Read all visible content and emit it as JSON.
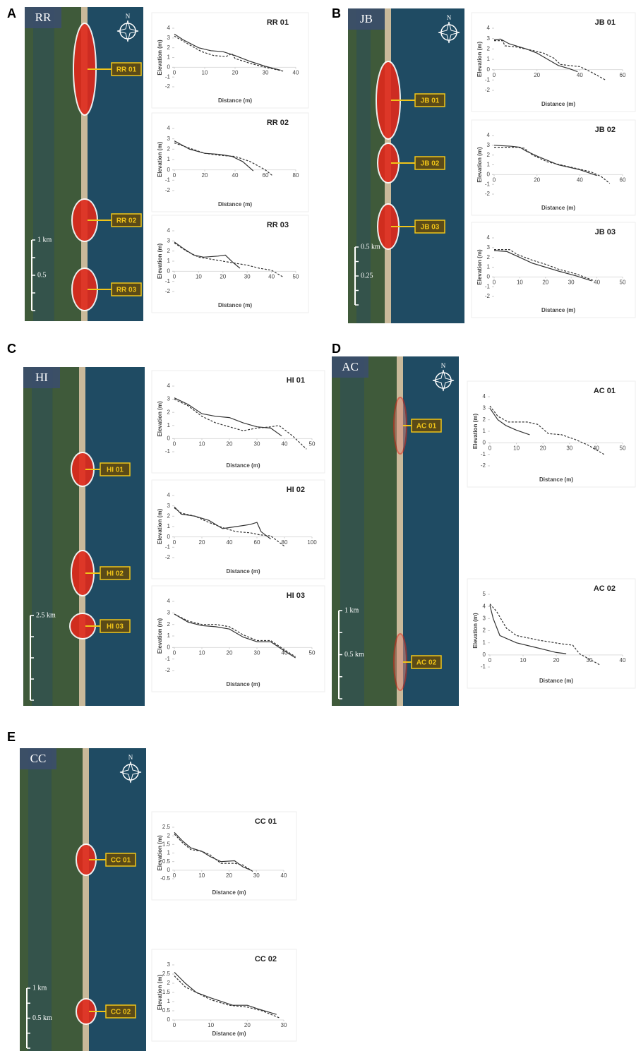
{
  "maps": [
    {
      "panel": "A",
      "site": "RR",
      "north": "N",
      "sites": [
        "RR 01",
        "RR 02",
        "RR 03"
      ],
      "scale": [
        "1 km",
        "0.5"
      ]
    },
    {
      "panel": "B",
      "site": "JB",
      "north": "N",
      "sites": [
        "JB 01",
        "JB 02",
        "JB 03"
      ],
      "scale": [
        "0.5 km",
        "0.25"
      ]
    },
    {
      "panel": "C",
      "site": "HI",
      "sites": [
        "HI 01",
        "HI 02",
        "HI 03"
      ],
      "scale": [
        "2.5 km"
      ]
    },
    {
      "panel": "D",
      "site": "AC",
      "north": "N",
      "sites": [
        "AC 01",
        "AC 02"
      ],
      "scale": [
        "1 km",
        "0.5 km"
      ]
    },
    {
      "panel": "E",
      "site": "CC",
      "north": "N",
      "sites": [
        "CC 01",
        "CC 02"
      ],
      "scale": [
        "1 km",
        "0.5 km"
      ]
    }
  ],
  "chart_data": [
    {
      "type": "line",
      "title": "RR 01",
      "xlabel": "Distance (m)",
      "ylabel": "Elevation (m)",
      "xlim": [
        0,
        40
      ],
      "xticks": [
        0,
        10,
        20,
        30,
        40
      ],
      "ylim": [
        -2,
        4
      ],
      "yticks": [
        -2,
        -1,
        0,
        1,
        2,
        3,
        4
      ],
      "series": [
        {
          "color": "#333333",
          "dash": false,
          "x": [
            0,
            3,
            8,
            12,
            16,
            20,
            25,
            30,
            35
          ],
          "values": [
            3.4,
            2.8,
            2.0,
            1.7,
            1.6,
            1.2,
            0.6,
            0.1,
            -0.3
          ]
        },
        {
          "color": "#333333",
          "dash": true,
          "x": [
            0,
            5,
            9,
            13,
            17,
            19,
            20,
            25,
            30,
            36
          ],
          "values": [
            3.2,
            2.3,
            1.6,
            1.2,
            1.1,
            1.4,
            0.9,
            0.4,
            0,
            -0.4
          ]
        }
      ]
    },
    {
      "type": "line",
      "title": "RR 02",
      "xlabel": "Distance (m)",
      "ylabel": "Elevation (m)",
      "xlim": [
        0,
        80
      ],
      "xticks": [
        0,
        20,
        40,
        60,
        80
      ],
      "ylim": [
        -2,
        4
      ],
      "yticks": [
        -2,
        -1,
        0,
        1,
        2,
        3,
        4
      ],
      "series": [
        {
          "color": "#333333",
          "dash": false,
          "x": [
            0,
            10,
            20,
            30,
            38,
            45,
            52
          ],
          "values": [
            2.8,
            2.0,
            1.6,
            1.5,
            1.3,
            0.8,
            -0.1
          ]
        },
        {
          "color": "#333333",
          "dash": true,
          "x": [
            0,
            10,
            20,
            30,
            40,
            50,
            60,
            65
          ],
          "values": [
            2.6,
            2.1,
            1.6,
            1.4,
            1.3,
            0.8,
            0,
            -0.6
          ]
        }
      ]
    },
    {
      "type": "line",
      "title": "RR 03",
      "xlabel": "Distance (m)",
      "ylabel": "Elevation (m)",
      "xlim": [
        0,
        50
      ],
      "xticks": [
        0,
        10,
        20,
        30,
        40,
        50
      ],
      "ylim": [
        -2,
        4
      ],
      "yticks": [
        -2,
        -1,
        0,
        1,
        2,
        3,
        4
      ],
      "series": [
        {
          "color": "#333333",
          "dash": false,
          "x": [
            0,
            4,
            8,
            12,
            18,
            21,
            24,
            27
          ],
          "values": [
            2.9,
            2.2,
            1.6,
            1.4,
            1.5,
            1.6,
            0.9,
            0.3
          ]
        },
        {
          "color": "#333333",
          "dash": true,
          "x": [
            0,
            5,
            10,
            15,
            20,
            25,
            30,
            35,
            40,
            45
          ],
          "values": [
            2.8,
            2.0,
            1.4,
            1.2,
            1.0,
            0.8,
            0.6,
            0.3,
            0.1,
            -0.6
          ]
        }
      ]
    },
    {
      "type": "line",
      "title": "JB 01",
      "xlabel": "Distance (m)",
      "ylabel": "Elevation (m)",
      "xlim": [
        0,
        60
      ],
      "xticks": [
        0,
        20,
        40,
        60
      ],
      "ylim": [
        -2,
        4
      ],
      "yticks": [
        -2,
        -1,
        0,
        1,
        2,
        3,
        4
      ],
      "series": [
        {
          "color": "#333333",
          "dash": false,
          "x": [
            0,
            3,
            7,
            15,
            20,
            25,
            30,
            35,
            39
          ],
          "values": [
            2.9,
            2.95,
            2.5,
            2.0,
            1.6,
            1.0,
            0.4,
            0.1,
            -0.2
          ]
        },
        {
          "color": "#333333",
          "dash": true,
          "x": [
            0,
            4,
            5,
            10,
            17,
            23,
            28,
            31,
            35,
            40,
            45,
            52
          ],
          "values": [
            2.8,
            2.8,
            2.3,
            2.2,
            1.9,
            1.6,
            1.1,
            0.5,
            0.4,
            0.3,
            -0.2,
            -1.0
          ]
        }
      ]
    },
    {
      "type": "line",
      "title": "JB 02",
      "xlabel": "Distance (m)",
      "ylabel": "Elevation (m)",
      "xlim": [
        0,
        60
      ],
      "xticks": [
        0,
        20,
        40,
        60
      ],
      "ylim": [
        -2,
        4
      ],
      "yticks": [
        -2,
        -1,
        0,
        1,
        2,
        3,
        4
      ],
      "series": [
        {
          "color": "#333333",
          "dash": false,
          "x": [
            0,
            8,
            12,
            15,
            20,
            30,
            40,
            48
          ],
          "values": [
            3.0,
            2.9,
            2.8,
            2.4,
            1.9,
            1.0,
            0.5,
            -0.1
          ]
        },
        {
          "color": "#333333",
          "dash": true,
          "x": [
            0,
            10,
            14,
            18,
            25,
            35,
            45,
            50,
            54
          ],
          "values": [
            2.8,
            2.8,
            2.7,
            2.0,
            1.3,
            0.8,
            0.3,
            -0.2,
            -0.9
          ]
        }
      ]
    },
    {
      "type": "line",
      "title": "JB 03",
      "xlabel": "Distance (m)",
      "ylabel": "Elevation (m)",
      "xlim": [
        0,
        50
      ],
      "xticks": [
        0,
        10,
        20,
        30,
        40,
        50
      ],
      "ylim": [
        -2,
        4
      ],
      "yticks": [
        -2,
        -1,
        0,
        1,
        2,
        3,
        4
      ],
      "series": [
        {
          "color": "#333333",
          "dash": false,
          "x": [
            0,
            5,
            10,
            15,
            20,
            25,
            32,
            38
          ],
          "values": [
            2.7,
            2.6,
            2.0,
            1.4,
            1.0,
            0.6,
            0.1,
            -0.4
          ]
        },
        {
          "color": "#333333",
          "dash": true,
          "x": [
            0,
            6,
            9,
            15,
            20,
            25,
            32,
            39
          ],
          "values": [
            2.8,
            2.8,
            2.3,
            1.7,
            1.3,
            0.8,
            0.3,
            -0.4
          ]
        }
      ]
    },
    {
      "type": "line",
      "title": "HI 01",
      "xlabel": "Distance (m)",
      "ylabel": "Elevation (m)",
      "xlim": [
        0,
        50
      ],
      "xticks": [
        0,
        10,
        20,
        30,
        40,
        50
      ],
      "ylim": [
        -1,
        4
      ],
      "yticks": [
        -1,
        0,
        1,
        2,
        3,
        4
      ],
      "series": [
        {
          "color": "#333333",
          "dash": false,
          "x": [
            0,
            5,
            10,
            15,
            20,
            25,
            30,
            35,
            39
          ],
          "values": [
            3.1,
            2.6,
            1.9,
            1.7,
            1.6,
            1.2,
            0.9,
            0.8,
            0.2
          ]
        },
        {
          "color": "#333333",
          "dash": true,
          "x": [
            0,
            5,
            10,
            15,
            20,
            25,
            30,
            35,
            38,
            43,
            48
          ],
          "values": [
            3.0,
            2.5,
            1.7,
            1.2,
            0.9,
            0.6,
            0.8,
            0.9,
            1.0,
            0.2,
            -0.8
          ]
        }
      ]
    },
    {
      "type": "line",
      "title": "HI 02",
      "xlabel": "Distance (m)",
      "ylabel": "Elevation (m)",
      "xlim": [
        0,
        100
      ],
      "xticks": [
        0,
        20,
        40,
        60,
        80,
        100
      ],
      "ylim": [
        -2,
        4
      ],
      "yticks": [
        -2,
        -1,
        0,
        1,
        2,
        3,
        4
      ],
      "series": [
        {
          "color": "#333333",
          "dash": false,
          "x": [
            0,
            5,
            15,
            25,
            35,
            45,
            55,
            60,
            63,
            70
          ],
          "values": [
            2.9,
            2.2,
            2.0,
            1.6,
            0.8,
            1.0,
            1.2,
            1.4,
            0.5,
            -0.2
          ]
        },
        {
          "color": "#333333",
          "dash": true,
          "x": [
            0,
            5,
            15,
            25,
            35,
            45,
            55,
            62,
            70,
            80
          ],
          "values": [
            2.8,
            2.3,
            2.0,
            1.4,
            0.9,
            0.5,
            0.4,
            0.2,
            0.1,
            -0.9
          ]
        }
      ]
    },
    {
      "type": "line",
      "title": "HI 03",
      "xlabel": "Distance (m)",
      "ylabel": "Elevation (m)",
      "xlim": [
        0,
        50
      ],
      "xticks": [
        0,
        10,
        20,
        30,
        40,
        50
      ],
      "ylim": [
        -2,
        4
      ],
      "yticks": [
        -2,
        -1,
        0,
        1,
        2,
        3,
        4
      ],
      "series": [
        {
          "color": "#333333",
          "dash": false,
          "x": [
            0,
            5,
            10,
            15,
            20,
            25,
            30,
            35,
            40,
            44
          ],
          "values": [
            2.9,
            2.2,
            1.9,
            1.8,
            1.6,
            0.9,
            0.5,
            0.5,
            -0.3,
            -0.9
          ]
        },
        {
          "color": "#333333",
          "dash": true,
          "x": [
            0,
            5,
            10,
            15,
            20,
            25,
            30,
            35,
            40,
            44
          ],
          "values": [
            2.9,
            2.3,
            2.0,
            2.0,
            1.8,
            1.1,
            0.6,
            0.6,
            -0.2,
            -0.8
          ]
        }
      ]
    },
    {
      "type": "line",
      "title": "AC 01",
      "xlabel": "Distance (m)",
      "ylabel": "Elevation (m)",
      "xlim": [
        0,
        50
      ],
      "xticks": [
        0,
        10,
        20,
        30,
        40,
        50
      ],
      "ylim": [
        -2,
        4
      ],
      "yticks": [
        -2,
        -1,
        0,
        1,
        2,
        3,
        4
      ],
      "series": [
        {
          "color": "#333333",
          "dash": false,
          "x": [
            0,
            3,
            6,
            10,
            15
          ],
          "values": [
            3.0,
            2.0,
            1.5,
            1.1,
            0.7
          ]
        },
        {
          "color": "#333333",
          "dash": true,
          "x": [
            0,
            3,
            7,
            14,
            18,
            22,
            27,
            32,
            37,
            43
          ],
          "values": [
            3.2,
            2.3,
            1.8,
            1.8,
            1.6,
            0.8,
            0.7,
            0.3,
            -0.2,
            -1.0
          ]
        }
      ]
    },
    {
      "type": "line",
      "title": "AC 02",
      "xlabel": "Distance (m)",
      "ylabel": "Elevation (m)",
      "xlim": [
        0,
        40
      ],
      "xticks": [
        0,
        10,
        20,
        30,
        40
      ],
      "ylim": [
        -1,
        5
      ],
      "yticks": [
        -1,
        0,
        1,
        2,
        3,
        4,
        5
      ],
      "series": [
        {
          "color": "#333333",
          "dash": false,
          "x": [
            0,
            1,
            3,
            8,
            14,
            20,
            23
          ],
          "values": [
            4.1,
            3.0,
            1.6,
            1.0,
            0.6,
            0.2,
            0.1
          ]
        },
        {
          "color": "#333333",
          "dash": true,
          "x": [
            0,
            2,
            5,
            8,
            15,
            22,
            25,
            27,
            33
          ],
          "values": [
            4.2,
            3.6,
            2.2,
            1.6,
            1.2,
            0.9,
            0.8,
            0.1,
            -0.8
          ]
        }
      ]
    },
    {
      "type": "line",
      "title": "CC 01",
      "xlabel": "Distance (m)",
      "ylabel": "Elevation (m)",
      "xlim": [
        0,
        40
      ],
      "xticks": [
        0,
        10,
        20,
        30,
        40
      ],
      "ylim": [
        -0.5,
        2.5
      ],
      "yticks": [
        -0.5,
        0,
        0.5,
        1,
        1.5,
        2,
        2.5
      ],
      "series": [
        {
          "color": "#333333",
          "dash": false,
          "x": [
            0,
            3,
            6,
            10,
            13,
            17,
            22,
            25,
            28
          ],
          "values": [
            2.2,
            1.7,
            1.3,
            1.1,
            0.8,
            0.5,
            0.55,
            0.2,
            0
          ]
        },
        {
          "color": "#333333",
          "dash": true,
          "x": [
            0,
            3,
            6,
            10,
            13,
            17,
            22,
            25,
            29
          ],
          "values": [
            2.1,
            1.6,
            1.2,
            1.1,
            0.9,
            0.4,
            0.4,
            0.3,
            -0.1
          ]
        }
      ]
    },
    {
      "type": "line",
      "title": "CC 02",
      "xlabel": "Distance (m)",
      "ylabel": "Elevation (m)",
      "xlim": [
        0,
        30
      ],
      "xticks": [
        0,
        10,
        20,
        30
      ],
      "ylim": [
        0,
        3
      ],
      "yticks": [
        0,
        0.5,
        1,
        1.5,
        2,
        2.5,
        3
      ],
      "series": [
        {
          "color": "#333333",
          "dash": false,
          "x": [
            0,
            3,
            6,
            10,
            16,
            20,
            23,
            28
          ],
          "values": [
            2.6,
            2.0,
            1.5,
            1.2,
            0.8,
            0.8,
            0.6,
            0.3
          ]
        },
        {
          "color": "#333333",
          "dash": true,
          "x": [
            0,
            3,
            6,
            10,
            15,
            20,
            24,
            29
          ],
          "values": [
            2.4,
            1.8,
            1.5,
            1.1,
            0.8,
            0.7,
            0.5,
            0.1
          ]
        }
      ]
    }
  ]
}
